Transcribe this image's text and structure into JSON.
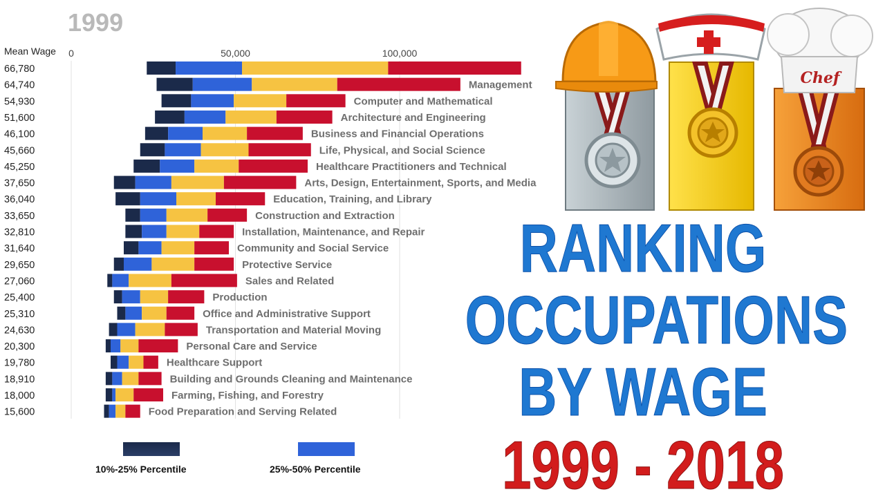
{
  "year": "1999",
  "chart_data": {
    "type": "stacked-horizontal-bar",
    "y_header": "Mean Wage",
    "xlim": [
      0,
      140000
    ],
    "x_ticks": [
      {
        "value": 0,
        "label": "0"
      },
      {
        "value": 50000,
        "label": "50,000"
      },
      {
        "value": 100000,
        "label": "100,000"
      }
    ],
    "grid": true,
    "series_colors": [
      "#1b2a4a",
      "#2f63d9",
      "#f6c342",
      "#c8102e"
    ],
    "legend": [
      {
        "label": "10%-25% Percentile",
        "color": "#1b2a4a"
      },
      {
        "label": "25%-50% Percentile",
        "color": "#2f63d9"
      }
    ],
    "rows": [
      {
        "mean_wage": "66,780",
        "label": "",
        "segments": [
          23000,
          31800,
          52000,
          96500,
          137000
        ]
      },
      {
        "mean_wage": "64,740",
        "label": "Management",
        "segments": [
          26000,
          37000,
          55000,
          81000,
          118500
        ]
      },
      {
        "mean_wage": "54,930",
        "label": "Computer and Mathematical",
        "segments": [
          27500,
          36500,
          49500,
          65500,
          83500
        ]
      },
      {
        "mean_wage": "51,600",
        "label": "Architecture and Engineering",
        "segments": [
          25500,
          34500,
          47000,
          62500,
          79500
        ]
      },
      {
        "mean_wage": "46,100",
        "label": "Business and Financial Operations",
        "segments": [
          22500,
          29500,
          40000,
          53500,
          70500
        ]
      },
      {
        "mean_wage": "45,660",
        "label": "Life, Physical, and Social Science",
        "segments": [
          21000,
          28500,
          39500,
          54000,
          73000
        ]
      },
      {
        "mean_wage": "45,250",
        "label": "Healthcare Practitioners and Technical",
        "segments": [
          19000,
          27000,
          37500,
          51000,
          72000
        ]
      },
      {
        "mean_wage": "37,650",
        "label": "Arts, Design, Entertainment, Sports, and Media",
        "segments": [
          13000,
          19500,
          30500,
          46500,
          68500
        ]
      },
      {
        "mean_wage": "36,040",
        "label": "Education, Training, and Library",
        "segments": [
          13500,
          21000,
          32000,
          44000,
          59000
        ]
      },
      {
        "mean_wage": "33,650",
        "label": "Construction and Extraction",
        "segments": [
          16500,
          21000,
          29000,
          41500,
          53500
        ]
      },
      {
        "mean_wage": "32,810",
        "label": "Installation, Maintenance, and Repair",
        "segments": [
          16500,
          21500,
          29000,
          39000,
          49500
        ]
      },
      {
        "mean_wage": "31,640",
        "label": "Community and Social Service",
        "segments": [
          16000,
          20500,
          27500,
          37500,
          48000
        ]
      },
      {
        "mean_wage": "29,650",
        "label": "Protective Service",
        "segments": [
          13000,
          16000,
          24500,
          37500,
          49500
        ]
      },
      {
        "mean_wage": "27,060",
        "label": "Sales and Related",
        "segments": [
          11000,
          12500,
          17500,
          30500,
          50500
        ]
      },
      {
        "mean_wage": "25,400",
        "label": "Production",
        "segments": [
          13000,
          15500,
          21000,
          29500,
          40500
        ]
      },
      {
        "mean_wage": "25,310",
        "label": "Office and Administrative Support",
        "segments": [
          14000,
          16500,
          21500,
          29000,
          37500
        ]
      },
      {
        "mean_wage": "24,630",
        "label": "Transportation and Material Moving",
        "segments": [
          11500,
          14000,
          19500,
          28500,
          38500
        ]
      },
      {
        "mean_wage": "20,300",
        "label": "Personal Care and Service",
        "segments": [
          10500,
          12000,
          15000,
          20500,
          32500
        ]
      },
      {
        "mean_wage": "19,780",
        "label": "Healthcare Support",
        "segments": [
          12000,
          14000,
          17500,
          22000,
          26500
        ]
      },
      {
        "mean_wage": "18,910",
        "label": "Building and Grounds Cleaning and Maintenance",
        "segments": [
          10500,
          12500,
          15500,
          20500,
          27500
        ]
      },
      {
        "mean_wage": "18,000",
        "label": "Farming, Fishing, and Forestry",
        "segments": [
          10500,
          12500,
          13500,
          19000,
          28000
        ]
      },
      {
        "mean_wage": "15,600",
        "label": "Food Preparation and Serving Related",
        "segments": [
          10000,
          11500,
          13500,
          16500,
          21000
        ]
      }
    ]
  },
  "title": {
    "line1": "RANKING",
    "line2": "OCCUPATIONS",
    "line3": "BY WAGE",
    "years": "1999 - 2018"
  },
  "medals": {
    "chef_hat_text": "Chef",
    "icons": [
      "hard-hat-icon",
      "nurse-cap-icon",
      "chef-hat-icon",
      "silver-medal-icon",
      "gold-medal-icon",
      "bronze-medal-icon"
    ]
  }
}
